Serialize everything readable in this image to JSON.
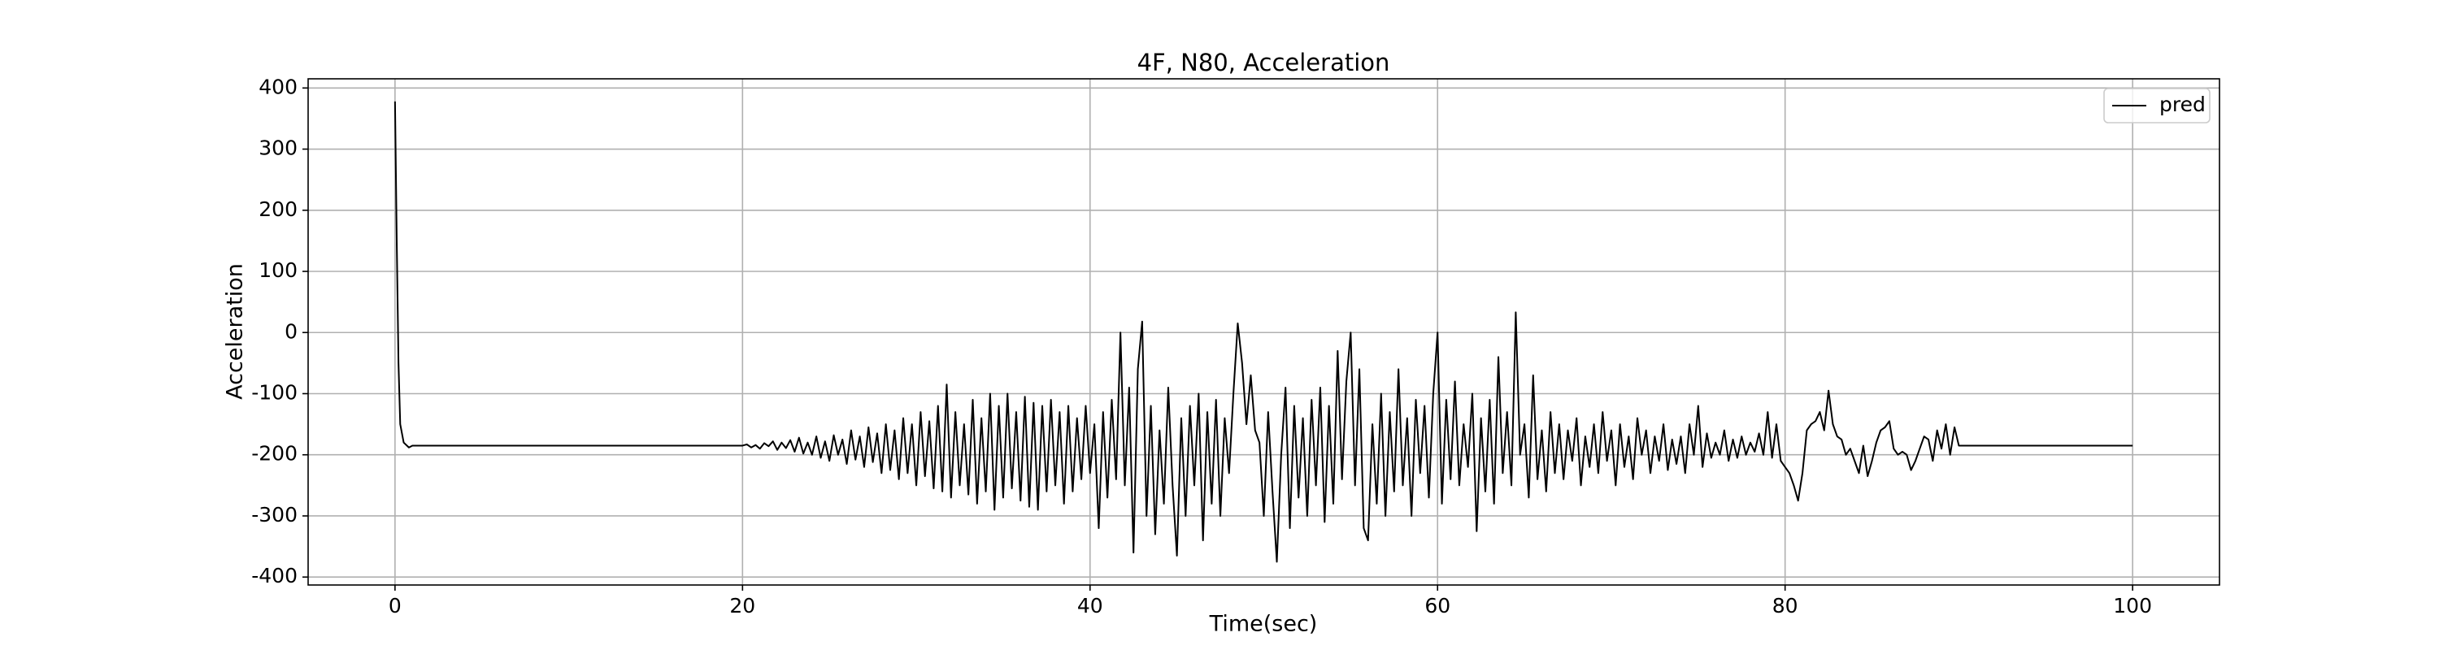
{
  "chart_data": {
    "type": "line",
    "title": "4F, N80, Acceleration",
    "xlabel": "Time(sec)",
    "ylabel": "Acceleration",
    "xlim": [
      -5,
      105
    ],
    "xticks": [
      0,
      20,
      40,
      60,
      80,
      100
    ],
    "ylim": [
      -413,
      415
    ],
    "yticks": [
      -400,
      -300,
      -200,
      -100,
      0,
      100,
      200,
      300,
      400
    ],
    "grid": true,
    "legend": "upper right",
    "x": [
      0,
      0.1,
      0.2,
      0.3,
      0.5,
      0.8,
      1,
      2,
      4,
      6,
      8,
      10,
      12,
      14,
      16,
      18,
      20,
      20.25,
      20.5,
      20.75,
      21,
      21.25,
      21.5,
      21.75,
      22,
      22.25,
      22.5,
      22.75,
      23,
      23.25,
      23.5,
      23.75,
      24,
      24.25,
      24.5,
      24.75,
      25,
      25.25,
      25.5,
      25.75,
      26,
      26.25,
      26.5,
      26.75,
      27,
      27.25,
      27.5,
      27.75,
      28,
      28.25,
      28.5,
      28.75,
      29,
      29.25,
      29.5,
      29.75,
      30,
      30.25,
      30.5,
      30.75,
      31,
      31.25,
      31.5,
      31.75,
      32,
      32.25,
      32.5,
      32.75,
      33,
      33.25,
      33.5,
      33.75,
      34,
      34.25,
      34.5,
      34.75,
      35,
      35.25,
      35.5,
      35.75,
      36,
      36.25,
      36.5,
      36.75,
      37,
      37.25,
      37.5,
      37.75,
      38,
      38.25,
      38.5,
      38.75,
      39,
      39.25,
      39.5,
      39.75,
      40,
      40.25,
      40.5,
      40.75,
      41,
      41.25,
      41.5,
      41.75,
      42,
      42.25,
      42.5,
      42.75,
      43,
      43.25,
      43.5,
      43.75,
      44,
      44.25,
      44.5,
      44.75,
      45,
      45.25,
      45.5,
      45.75,
      46,
      46.25,
      46.5,
      46.75,
      47,
      47.25,
      47.5,
      47.75,
      48,
      48.25,
      48.5,
      48.75,
      49,
      49.25,
      49.5,
      49.75,
      50,
      50.25,
      50.5,
      50.75,
      51,
      51.25,
      51.5,
      51.75,
      52,
      52.25,
      52.5,
      52.75,
      53,
      53.25,
      53.5,
      53.75,
      54,
      54.25,
      54.5,
      54.75,
      55,
      55.25,
      55.5,
      55.75,
      56,
      56.25,
      56.5,
      56.75,
      57,
      57.25,
      57.5,
      57.75,
      58,
      58.25,
      58.5,
      58.75,
      59,
      59.25,
      59.5,
      59.75,
      60,
      60.25,
      60.5,
      60.75,
      61,
      61.25,
      61.5,
      61.75,
      62,
      62.25,
      62.5,
      62.75,
      63,
      63.25,
      63.5,
      63.75,
      64,
      64.25,
      64.5,
      64.75,
      65,
      65.25,
      65.5,
      65.75,
      66,
      66.25,
      66.5,
      66.75,
      67,
      67.25,
      67.5,
      67.75,
      68,
      68.25,
      68.5,
      68.75,
      69,
      69.25,
      69.5,
      69.75,
      70,
      70.25,
      70.5,
      70.75,
      71,
      71.25,
      71.5,
      71.75,
      72,
      72.25,
      72.5,
      72.75,
      73,
      73.25,
      73.5,
      73.75,
      74,
      74.25,
      74.5,
      74.75,
      75,
      75.25,
      75.5,
      75.75,
      76,
      76.25,
      76.5,
      76.75,
      77,
      77.25,
      77.5,
      77.75,
      78,
      78.25,
      78.5,
      78.75,
      79,
      79.25,
      79.5,
      79.75,
      80,
      80.25,
      80.5,
      80.75,
      81,
      81.25,
      81.5,
      81.75,
      82,
      82.25,
      82.5,
      82.75,
      83,
      83.25,
      83.5,
      83.75,
      84,
      84.25,
      84.5,
      84.75,
      85,
      85.25,
      85.5,
      85.75,
      86,
      86.25,
      86.5,
      86.75,
      87,
      87.25,
      87.5,
      87.75,
      88,
      88.25,
      88.5,
      88.75,
      89,
      89.25,
      89.5,
      89.75,
      90,
      92,
      94,
      96,
      98,
      100
    ],
    "series": [
      {
        "name": "pred",
        "color": "#000000",
        "values": [
          378,
          150,
          -50,
          -150,
          -180,
          -188,
          -185,
          -185,
          -185,
          -185,
          -185,
          -185,
          -185,
          -185,
          -185,
          -185,
          -185,
          -183,
          -188,
          -184,
          -190,
          -181,
          -186,
          -178,
          -192,
          -180,
          -189,
          -176,
          -195,
          -172,
          -198,
          -180,
          -200,
          -170,
          -205,
          -178,
          -210,
          -168,
          -200,
          -175,
          -215,
          -160,
          -208,
          -170,
          -220,
          -155,
          -212,
          -165,
          -230,
          -150,
          -225,
          -160,
          -240,
          -140,
          -230,
          -150,
          -250,
          -130,
          -235,
          -145,
          -255,
          -120,
          -260,
          -85,
          -270,
          -130,
          -250,
          -150,
          -265,
          -110,
          -280,
          -140,
          -260,
          -100,
          -290,
          -120,
          -270,
          -100,
          -255,
          -130,
          -275,
          -105,
          -285,
          -115,
          -290,
          -120,
          -260,
          -110,
          -250,
          -130,
          -280,
          -120,
          -260,
          -140,
          -240,
          -120,
          -230,
          -150,
          -320,
          -130,
          -270,
          -110,
          -240,
          0,
          -250,
          -90,
          -360,
          -60,
          18,
          -300,
          -120,
          -330,
          -160,
          -280,
          -90,
          -250,
          -365,
          -140,
          -300,
          -120,
          -250,
          -100,
          -340,
          -130,
          -280,
          -110,
          -300,
          -140,
          -230,
          -100,
          15,
          -50,
          -150,
          -70,
          -160,
          -180,
          -300,
          -130,
          -260,
          -375,
          -200,
          -90,
          -320,
          -120,
          -270,
          -140,
          -300,
          -110,
          -250,
          -90,
          -310,
          -120,
          -280,
          -30,
          -240,
          -80,
          0,
          -250,
          -60,
          -320,
          -340,
          -150,
          -280,
          -100,
          -300,
          -130,
          -260,
          -60,
          -250,
          -140,
          -300,
          -110,
          -230,
          -120,
          -270,
          -100,
          0,
          -280,
          -110,
          -240,
          -80,
          -250,
          -150,
          -220,
          -100,
          -325,
          -140,
          -260,
          -110,
          -280,
          -40,
          -230,
          -130,
          -250,
          33,
          -200,
          -150,
          -270,
          -70,
          -240,
          -160,
          -260,
          -130,
          -230,
          -150,
          -240,
          -160,
          -210,
          -140,
          -250,
          -170,
          -220,
          -150,
          -230,
          -130,
          -210,
          -160,
          -250,
          -150,
          -220,
          -170,
          -240,
          -140,
          -200,
          -160,
          -230,
          -170,
          -210,
          -150,
          -225,
          -175,
          -215,
          -170,
          -230,
          -150,
          -200,
          -120,
          -220,
          -165,
          -205,
          -180,
          -200,
          -160,
          -210,
          -175,
          -205,
          -170,
          -200,
          -180,
          -195,
          -165,
          -200,
          -130,
          -205,
          -150,
          -210,
          -220,
          -230,
          -250,
          -275,
          -230,
          -160,
          -150,
          -145,
          -130,
          -160,
          -95,
          -150,
          -170,
          -175,
          -200,
          -190,
          -210,
          -230,
          -185,
          -235,
          -210,
          -180,
          -160,
          -155,
          -145,
          -190,
          -200,
          -195,
          -200,
          -225,
          -210,
          -190,
          -170,
          -175,
          -210,
          -160,
          -190,
          -150,
          -200,
          -155,
          -185,
          -185,
          -185,
          -185,
          -185,
          -185
        ]
      }
    ]
  }
}
